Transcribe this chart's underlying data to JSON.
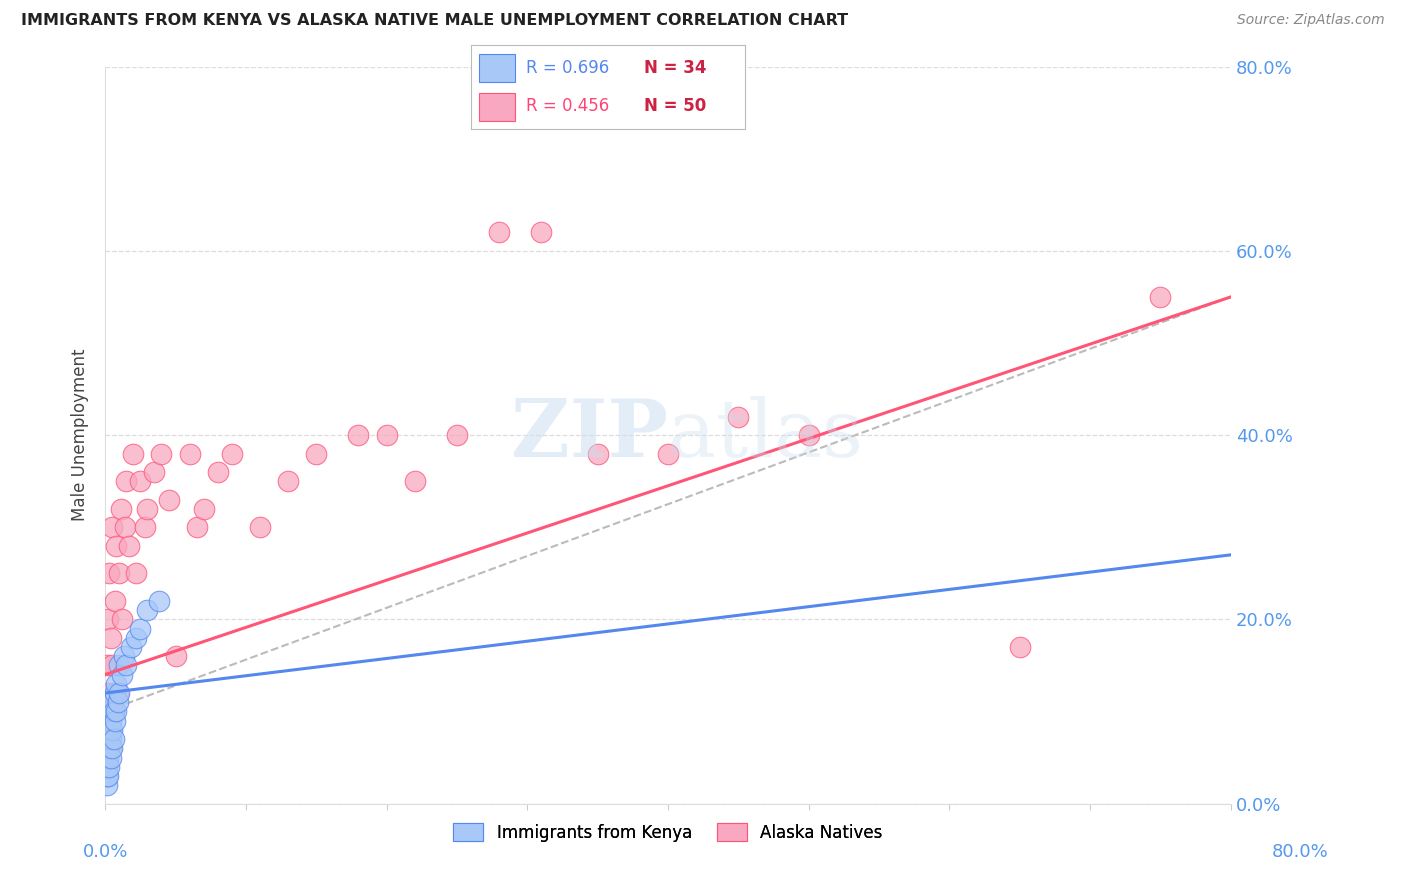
{
  "title": "IMMIGRANTS FROM KENYA VS ALASKA NATIVE MALE UNEMPLOYMENT CORRELATION CHART",
  "source": "Source: ZipAtlas.com",
  "ylabel": "Male Unemployment",
  "ytick_values": [
    0.0,
    0.2,
    0.4,
    0.6,
    0.8
  ],
  "xlim": [
    0.0,
    0.8
  ],
  "ylim": [
    0.0,
    0.8
  ],
  "legend_r_blue": "R = 0.696",
  "legend_n_blue": "N = 34",
  "legend_r_pink": "R = 0.456",
  "legend_n_pink": "N = 50",
  "legend_label_blue": "Immigrants from Kenya",
  "legend_label_pink": "Alaska Natives",
  "blue_scatter_color": "#a8c8f8",
  "pink_scatter_color": "#f8a8c0",
  "blue_line_color": "#5588ee",
  "pink_line_color": "#ff5577",
  "dashed_line_color": "#bbbbbb",
  "right_tick_color": "#5599ee",
  "watermark_color": "#d8eaf8",
  "blue_scatter_x": [
    0.001,
    0.001,
    0.001,
    0.002,
    0.002,
    0.002,
    0.002,
    0.003,
    0.003,
    0.003,
    0.003,
    0.004,
    0.004,
    0.004,
    0.005,
    0.005,
    0.005,
    0.006,
    0.006,
    0.007,
    0.007,
    0.008,
    0.008,
    0.009,
    0.01,
    0.01,
    0.012,
    0.013,
    0.015,
    0.018,
    0.022,
    0.025,
    0.03,
    0.038
  ],
  "blue_scatter_y": [
    0.02,
    0.03,
    0.04,
    0.03,
    0.05,
    0.06,
    0.07,
    0.04,
    0.06,
    0.08,
    0.1,
    0.05,
    0.07,
    0.09,
    0.06,
    0.08,
    0.11,
    0.07,
    0.1,
    0.09,
    0.12,
    0.1,
    0.13,
    0.11,
    0.12,
    0.15,
    0.14,
    0.16,
    0.15,
    0.17,
    0.18,
    0.19,
    0.21,
    0.22
  ],
  "pink_scatter_x": [
    0.001,
    0.001,
    0.001,
    0.002,
    0.002,
    0.003,
    0.003,
    0.004,
    0.004,
    0.005,
    0.005,
    0.006,
    0.007,
    0.008,
    0.009,
    0.01,
    0.011,
    0.012,
    0.014,
    0.015,
    0.017,
    0.02,
    0.022,
    0.025,
    0.028,
    0.03,
    0.035,
    0.04,
    0.045,
    0.05,
    0.06,
    0.065,
    0.07,
    0.08,
    0.09,
    0.11,
    0.13,
    0.15,
    0.18,
    0.2,
    0.22,
    0.25,
    0.28,
    0.31,
    0.35,
    0.4,
    0.45,
    0.5,
    0.65,
    0.75
  ],
  "pink_scatter_y": [
    0.05,
    0.1,
    0.15,
    0.08,
    0.2,
    0.12,
    0.25,
    0.06,
    0.18,
    0.15,
    0.3,
    0.1,
    0.22,
    0.28,
    0.12,
    0.25,
    0.32,
    0.2,
    0.3,
    0.35,
    0.28,
    0.38,
    0.25,
    0.35,
    0.3,
    0.32,
    0.36,
    0.38,
    0.33,
    0.16,
    0.38,
    0.3,
    0.32,
    0.36,
    0.38,
    0.3,
    0.35,
    0.38,
    0.4,
    0.4,
    0.35,
    0.4,
    0.62,
    0.62,
    0.38,
    0.38,
    0.42,
    0.4,
    0.17,
    0.55
  ],
  "blue_trend_x": [
    0.0,
    0.8
  ],
  "blue_trend_y": [
    0.12,
    0.27
  ],
  "pink_trend_x": [
    0.0,
    0.8
  ],
  "pink_trend_y": [
    0.14,
    0.55
  ],
  "dash_trend_x": [
    0.0,
    0.8
  ],
  "dash_trend_y": [
    0.1,
    0.55
  ]
}
